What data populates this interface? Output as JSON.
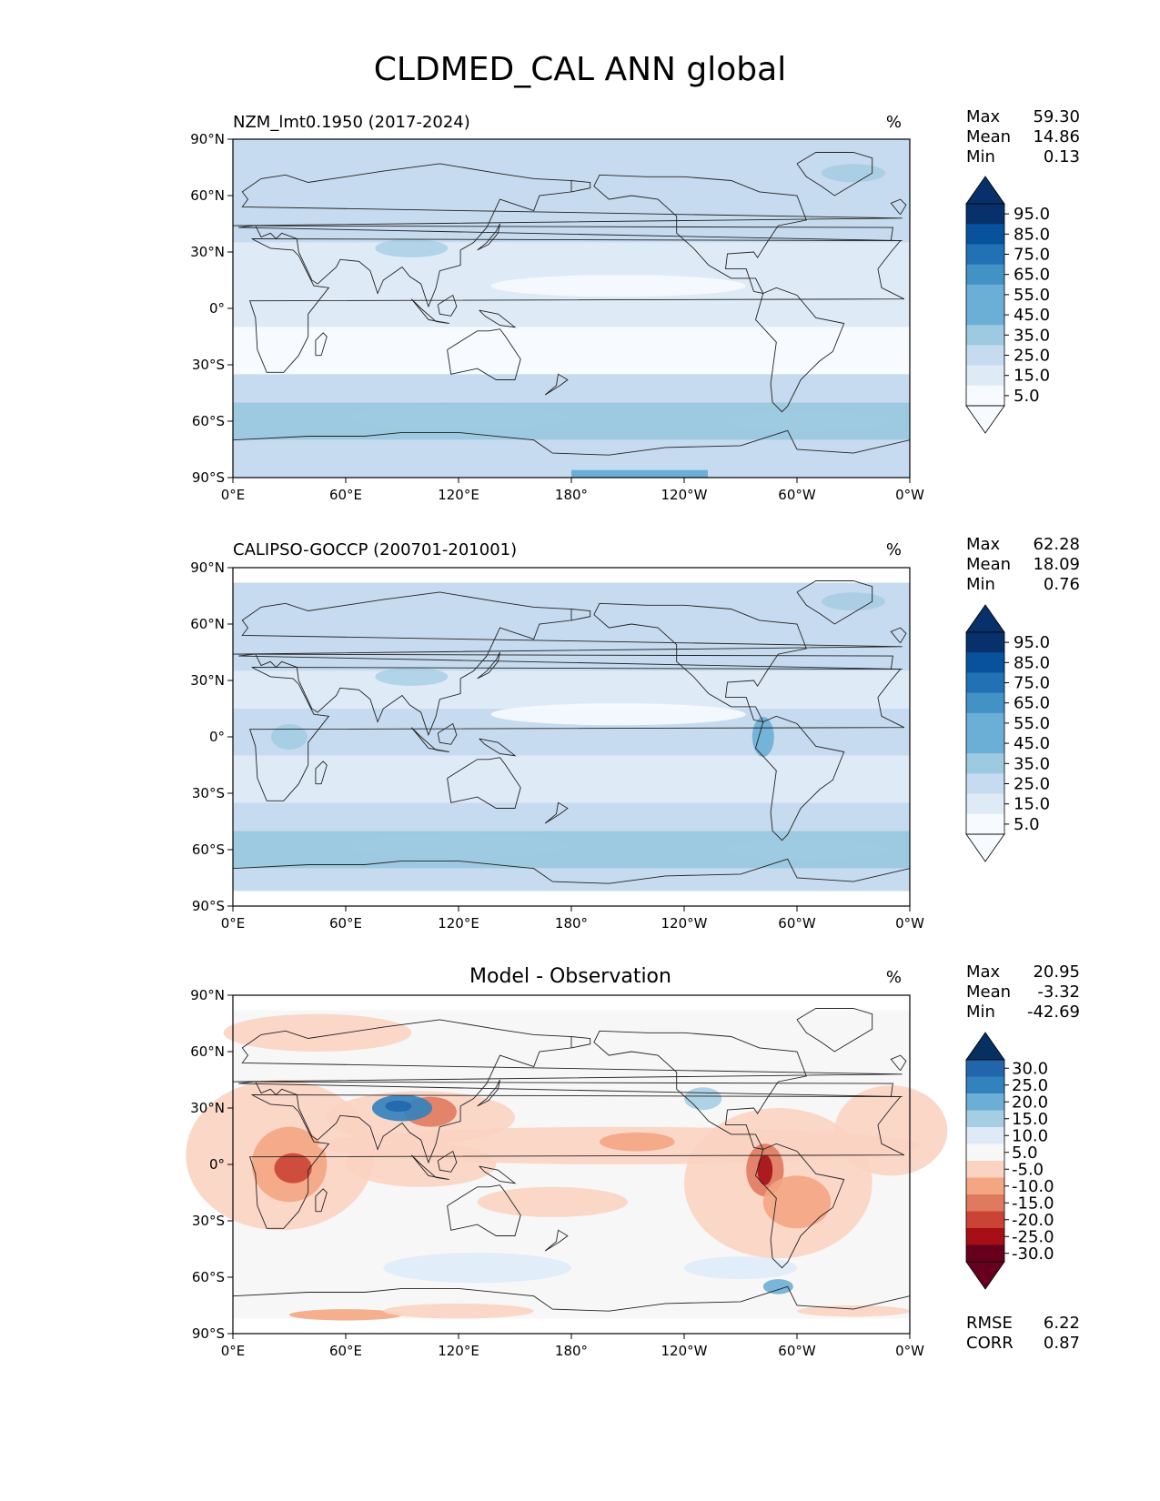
{
  "title": "CLDMED_CAL ANN global",
  "colors": {
    "blues": [
      "#f7fbff",
      "#deebf7",
      "#c6dbef",
      "#9ecae1",
      "#6baed6",
      "#4292c6",
      "#2171b5",
      "#08519c",
      "#08306b"
    ],
    "diverging": [
      "#67001f",
      "#a50f15",
      "#cb4335",
      "#e07a5f",
      "#f4a582",
      "#fbd3c2",
      "#f7f7f7",
      "#deebf7",
      "#a6cee3",
      "#6baed6",
      "#3182bd",
      "#2166ac",
      "#053061"
    ],
    "coast": "#222222"
  },
  "chart_data": [
    {
      "type": "heatmap",
      "title": "NZM_lmt0.1950 (2017-2024)",
      "units": "%",
      "stats": [
        {
          "label": "Max",
          "value": "59.30"
        },
        {
          "label": "Mean",
          "value": "14.86"
        },
        {
          "label": "Min",
          "value": "0.13"
        }
      ],
      "colorbar": {
        "scale": "sequential",
        "ticks": [
          "95.0",
          "85.0",
          "75.0",
          "65.0",
          "55.0",
          "45.0",
          "35.0",
          "25.0",
          "15.0",
          "5.0"
        ]
      },
      "xticks": [
        "0°E",
        "60°E",
        "120°E",
        "180°",
        "120°W",
        "60°W",
        "0°W"
      ],
      "yticks": [
        "90°N",
        "60°N",
        "30°N",
        "0°",
        "30°S",
        "60°S",
        "90°S"
      ],
      "xlim": [
        0,
        360
      ],
      "ylim": [
        -90,
        90
      ],
      "zonal_pattern": [
        {
          "lat": [
            60,
            90
          ],
          "level": 2
        },
        {
          "lat": [
            35,
            60
          ],
          "level": 2
        },
        {
          "lat": [
            15,
            35
          ],
          "level": 1
        },
        {
          "lat": [
            -10,
            15
          ],
          "level": 1
        },
        {
          "lat": [
            -35,
            -10
          ],
          "level": 0
        },
        {
          "lat": [
            -50,
            -35
          ],
          "level": 2
        },
        {
          "lat": [
            -70,
            -50
          ],
          "level": 3
        },
        {
          "lat": [
            -90,
            -70
          ],
          "level": 2
        }
      ]
    },
    {
      "type": "heatmap",
      "title": "CALIPSO-GOCCP (200701-201001)",
      "units": "%",
      "stats": [
        {
          "label": "Max",
          "value": "62.28"
        },
        {
          "label": "Mean",
          "value": "18.09"
        },
        {
          "label": "Min",
          "value": "0.76"
        }
      ],
      "colorbar": {
        "scale": "sequential",
        "ticks": [
          "95.0",
          "85.0",
          "75.0",
          "65.0",
          "55.0",
          "45.0",
          "35.0",
          "25.0",
          "15.0",
          "5.0"
        ]
      },
      "xticks": [
        "0°E",
        "60°E",
        "120°E",
        "180°",
        "120°W",
        "60°W",
        "0°W"
      ],
      "yticks": [
        "90°N",
        "60°N",
        "30°N",
        "0°",
        "30°S",
        "60°S",
        "90°S"
      ],
      "xlim": [
        0,
        360
      ],
      "ylim": [
        -90,
        90
      ],
      "data_lat_range": [
        -82,
        82
      ],
      "zonal_pattern": [
        {
          "lat": [
            60,
            82
          ],
          "level": 2
        },
        {
          "lat": [
            35,
            60
          ],
          "level": 2
        },
        {
          "lat": [
            15,
            35
          ],
          "level": 1
        },
        {
          "lat": [
            -10,
            15
          ],
          "level": 2
        },
        {
          "lat": [
            -35,
            -10
          ],
          "level": 1
        },
        {
          "lat": [
            -50,
            -35
          ],
          "level": 2
        },
        {
          "lat": [
            -70,
            -50
          ],
          "level": 3
        },
        {
          "lat": [
            -82,
            -70
          ],
          "level": 2
        }
      ]
    },
    {
      "type": "heatmap",
      "title": "Model - Observation",
      "units": "%",
      "stats": [
        {
          "label": "Max",
          "value": "20.95"
        },
        {
          "label": "Mean",
          "value": "-3.32"
        },
        {
          "label": "Min",
          "value": "-42.69"
        }
      ],
      "colorbar": {
        "scale": "diverging",
        "ticks": [
          "30.0",
          "25.0",
          "20.0",
          "15.0",
          "10.0",
          "5.0",
          "-5.0",
          "-10.0",
          "-15.0",
          "-20.0",
          "-25.0",
          "-30.0"
        ]
      },
      "xticks": [
        "0°E",
        "60°E",
        "120°E",
        "180°",
        "120°W",
        "60°W",
        "0°W"
      ],
      "yticks": [
        "90°N",
        "60°N",
        "30°N",
        "0°",
        "30°S",
        "60°S",
        "90°S"
      ],
      "xlim": [
        0,
        360
      ],
      "ylim": [
        -90,
        90
      ],
      "data_lat_range": [
        -82,
        82
      ],
      "extra_stats": [
        {
          "label": "RMSE",
          "value": "6.22"
        },
        {
          "label": "CORR",
          "value": "0.87"
        }
      ]
    }
  ]
}
